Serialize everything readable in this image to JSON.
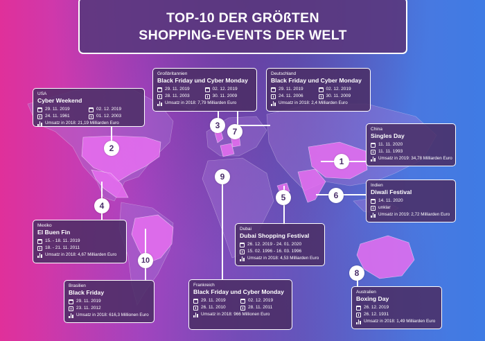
{
  "header": {
    "title_line1": "TOP-10 DER GRÖßTEN",
    "title_line2": "SHOPPING-EVENTS DER WELT"
  },
  "colors": {
    "background_left": "#e0309a",
    "background_right": "#3f7be4",
    "card_fill": "#4b2d64",
    "marker_text": "#4a2e6a"
  },
  "icons": {
    "date": "calendar-icon",
    "first_time": "history-icon",
    "sales": "bar-chart-icon"
  },
  "events": [
    {
      "rank": "1",
      "country": "China",
      "event": "Singles Day",
      "date": "11. 11. 2020",
      "first": "11. 11. 1993",
      "sales": "Umsatz in 2019: 34,78 Milliarden Euro"
    },
    {
      "rank": "2",
      "country": "USA",
      "event": "Cyber Weekend",
      "date1": "29. 11. 2019",
      "date2": "02. 12. 2019",
      "first1": "24. 11. 1961",
      "first2": "01. 12. 2003",
      "sales": "Umsatz in 2018: 21,19 Milliarden Euro"
    },
    {
      "rank": "3",
      "country": "Großbritannien",
      "event": "Black Friday und Cyber Monday",
      "date1": "29. 11. 2019",
      "date2": "02. 12. 2019",
      "first1": "28. 11. 2003",
      "first2": "30. 11. 2009",
      "sales": "Umsatz in 2018: 7,79 Milliarden Euro"
    },
    {
      "rank": "4",
      "country": "Mexiko",
      "event": "El Buen Fin",
      "date": "15. - 18. 11. 2019",
      "first": "18. - 21. 11. 2011",
      "sales": "Umsatz in 2018: 4,67 Milliarden Euro"
    },
    {
      "rank": "5",
      "country": "Dubai",
      "event": "Dubai Shopping Festival",
      "date": "26. 12. 2019 - 24. 01. 2020",
      "first": "15. 02. 1996 - 16. 03. 1996",
      "sales": "Umsatz in 2018: 4,53 Milliarden Euro"
    },
    {
      "rank": "6",
      "country": "Indien",
      "event": "Diwali Festival",
      "date": "14. 11. 2020",
      "first": "unklar",
      "sales": "Umsatz in 2019: 2,72 Milliarden Euro"
    },
    {
      "rank": "7",
      "country": "Deutschland",
      "event": "Black Friday und Cyber Monday",
      "date1": "29. 11. 2019",
      "date2": "02. 12. 2019",
      "first1": "24. 11. 2006",
      "first2": "30. 11. 2009",
      "sales": "Umsatz in 2018: 2,4 Milliarden Euro"
    },
    {
      "rank": "8",
      "country": "Australien",
      "event": "Boxing Day",
      "date": "26. 12. 2019",
      "first": "26. 12. 1931",
      "sales": "Umsatz in 2018: 1,49 Milliarden Euro"
    },
    {
      "rank": "9",
      "country": "Frankreich",
      "event": "Black Friday und Cyber Monday",
      "date1": "29. 11. 2019",
      "date2": "02. 12. 2019",
      "first1": "26. 11. 2010",
      "first2": "28. 11. 2011",
      "sales": "Umsatz in 2018: 966 Millionen Euro"
    },
    {
      "rank": "10",
      "country": "Brasilien",
      "event": "Black Friday",
      "date": "29. 11. 2019",
      "first": "23. 11. 2012",
      "sales": "Umsatz in 2018: 616,3 Millionen Euro"
    }
  ]
}
